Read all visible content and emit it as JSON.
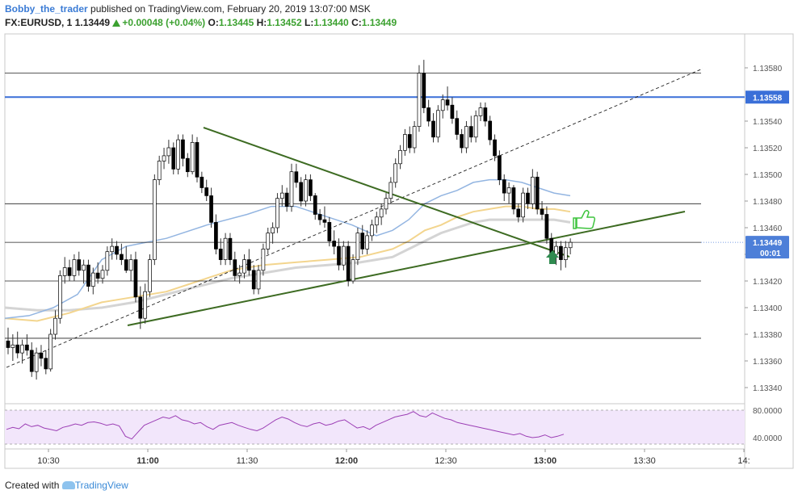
{
  "header": {
    "author": "Bobby_the_trader",
    "published_text": "published on TradingView.com, February 20, 2019 13:07:00 MSK",
    "symbol": "FX:EURUSD, 1",
    "last": "1.13449",
    "change": "+0.00048 (+0.04%)",
    "o_label": "O:",
    "o": "1.13445",
    "h_label": "H:",
    "h": "1.13452",
    "l_label": "L:",
    "l": "1.13440",
    "c_label": "C:",
    "c": "1.13449"
  },
  "footer": {
    "created_with": "Created with",
    "brand": "TradingView"
  },
  "colors": {
    "up": "#ffffff",
    "down": "#000000",
    "wick": "#333333",
    "sma_blue": "#93b5e1",
    "sma_yellow": "#f3d58e",
    "sma_grey": "#d4d4d4",
    "trend": "#3d6b22",
    "level": "#222222",
    "blue_level": "#3a6fd8",
    "rsi": "#9c3fb5",
    "rsi_band": "#f2e6fb",
    "price_label": "#4d7fd8",
    "arrow": "#2f8a4f",
    "thumb": "#3ec43e"
  },
  "chart_data": {
    "type": "candlestick",
    "price_axis": {
      "min": 1.1332,
      "max": 1.1359,
      "ticks": [
        "1.13340",
        "1.13360",
        "1.13380",
        "1.13400",
        "1.13420",
        "1.13440",
        "1.13460",
        "1.13480",
        "1.13500",
        "1.13520",
        "1.13540",
        "1.13580"
      ]
    },
    "time_axis": {
      "ticks": [
        "10:30",
        "11:00",
        "11:30",
        "12:00",
        "12:30",
        "13:00",
        "13:30",
        "14:"
      ]
    },
    "candles": [
      [
        1.13375,
        1.13385,
        1.13365,
        1.1337
      ],
      [
        1.1337,
        1.1338,
        1.1336,
        1.13372
      ],
      [
        1.13372,
        1.13382,
        1.13362,
        1.13366
      ],
      [
        1.13366,
        1.13376,
        1.13358,
        1.13372
      ],
      [
        1.13372,
        1.1338,
        1.13364,
        1.13368
      ],
      [
        1.13368,
        1.13374,
        1.13348,
        1.13352
      ],
      [
        1.13352,
        1.1337,
        1.13346,
        1.13366
      ],
      [
        1.13366,
        1.13372,
        1.13356,
        1.13362
      ],
      [
        1.13362,
        1.13368,
        1.1335,
        1.13354
      ],
      [
        1.13354,
        1.13384,
        1.13352,
        1.1338
      ],
      [
        1.1338,
        1.13398,
        1.13376,
        1.13392
      ],
      [
        1.13392,
        1.13428,
        1.13388,
        1.13424
      ],
      [
        1.13424,
        1.13438,
        1.13418,
        1.1343
      ],
      [
        1.1343,
        1.13436,
        1.1342,
        1.13424
      ],
      [
        1.13424,
        1.1344,
        1.1342,
        1.13436
      ],
      [
        1.13436,
        1.13442,
        1.13424,
        1.13428
      ],
      [
        1.13428,
        1.13436,
        1.13418,
        1.13432
      ],
      [
        1.13432,
        1.13436,
        1.13412,
        1.13416
      ],
      [
        1.13416,
        1.1343,
        1.1341,
        1.13426
      ],
      [
        1.13426,
        1.13434,
        1.13418,
        1.13422
      ],
      [
        1.13422,
        1.13432,
        1.13418,
        1.13428
      ],
      [
        1.13428,
        1.13446,
        1.13424,
        1.13442
      ],
      [
        1.13442,
        1.13452,
        1.13436,
        1.13446
      ],
      [
        1.13446,
        1.1345,
        1.13436,
        1.1344
      ],
      [
        1.1344,
        1.13448,
        1.13432,
        1.13436
      ],
      [
        1.13436,
        1.13446,
        1.13426,
        1.13428
      ],
      [
        1.13428,
        1.1344,
        1.1342,
        1.13436
      ],
      [
        1.13436,
        1.13442,
        1.13404,
        1.13408
      ],
      [
        1.13408,
        1.13416,
        1.13384,
        1.13392
      ],
      [
        1.13392,
        1.13418,
        1.13388,
        1.13412
      ],
      [
        1.13412,
        1.1344,
        1.13408,
        1.13436
      ],
      [
        1.13436,
        1.135,
        1.13432,
        1.13496
      ],
      [
        1.13496,
        1.13514,
        1.13492,
        1.1351
      ],
      [
        1.1351,
        1.1352,
        1.13504,
        1.13514
      ],
      [
        1.13514,
        1.13526,
        1.13508,
        1.1352
      ],
      [
        1.1352,
        1.13524,
        1.135,
        1.13504
      ],
      [
        1.13504,
        1.1353,
        1.135,
        1.13526
      ],
      [
        1.13526,
        1.1353,
        1.13506,
        1.13512
      ],
      [
        1.13512,
        1.13516,
        1.13498,
        1.13502
      ],
      [
        1.13502,
        1.1353,
        1.135,
        1.13524
      ],
      [
        1.13524,
        1.13528,
        1.13494,
        1.13498
      ],
      [
        1.13498,
        1.13502,
        1.13486,
        1.1349
      ],
      [
        1.1349,
        1.13496,
        1.1348,
        1.13484
      ],
      [
        1.13484,
        1.1349,
        1.1346,
        1.13464
      ],
      [
        1.13464,
        1.1347,
        1.1344,
        1.13444
      ],
      [
        1.13444,
        1.13452,
        1.13432,
        1.13436
      ],
      [
        1.13436,
        1.13456,
        1.13432,
        1.13452
      ],
      [
        1.13452,
        1.13456,
        1.13432,
        1.13436
      ],
      [
        1.13436,
        1.13442,
        1.1342,
        1.13424
      ],
      [
        1.13424,
        1.13432,
        1.13418,
        1.13426
      ],
      [
        1.13426,
        1.1344,
        1.13422,
        1.13436
      ],
      [
        1.13436,
        1.13444,
        1.13424,
        1.13428
      ],
      [
        1.13428,
        1.13432,
        1.1341,
        1.13414
      ],
      [
        1.13414,
        1.13432,
        1.1341,
        1.13428
      ],
      [
        1.13428,
        1.13448,
        1.13424,
        1.13444
      ],
      [
        1.13444,
        1.1346,
        1.1344,
        1.13456
      ],
      [
        1.13456,
        1.13464,
        1.13448,
        1.1346
      ],
      [
        1.1346,
        1.13486,
        1.13456,
        1.13482
      ],
      [
        1.13482,
        1.13492,
        1.13476,
        1.13486
      ],
      [
        1.13486,
        1.1349,
        1.13472,
        1.13476
      ],
      [
        1.13476,
        1.13508,
        1.13472,
        1.13502
      ],
      [
        1.13502,
        1.13508,
        1.1349,
        1.13494
      ],
      [
        1.13494,
        1.13498,
        1.13476,
        1.1348
      ],
      [
        1.1348,
        1.135,
        1.13476,
        1.13496
      ],
      [
        1.13496,
        1.135,
        1.1348,
        1.13484
      ],
      [
        1.13484,
        1.13486,
        1.13466,
        1.1347
      ],
      [
        1.1347,
        1.13474,
        1.13462,
        1.13466
      ],
      [
        1.13466,
        1.13476,
        1.1346,
        1.13464
      ],
      [
        1.13464,
        1.13468,
        1.13446,
        1.1345
      ],
      [
        1.1345,
        1.13458,
        1.1344,
        1.13446
      ],
      [
        1.13446,
        1.13452,
        1.13428,
        1.13432
      ],
      [
        1.13432,
        1.1345,
        1.13428,
        1.13446
      ],
      [
        1.13446,
        1.1345,
        1.13416,
        1.1342
      ],
      [
        1.1342,
        1.1344,
        1.13418,
        1.13436
      ],
      [
        1.13436,
        1.1346,
        1.13432,
        1.13456
      ],
      [
        1.13456,
        1.13462,
        1.1344,
        1.13444
      ],
      [
        1.13444,
        1.13458,
        1.1344,
        1.13454
      ],
      [
        1.13454,
        1.13466,
        1.1345,
        1.13462
      ],
      [
        1.13462,
        1.13472,
        1.13456,
        1.13468
      ],
      [
        1.13468,
        1.13478,
        1.13462,
        1.13474
      ],
      [
        1.13474,
        1.13486,
        1.1347,
        1.13482
      ],
      [
        1.13482,
        1.13498,
        1.13478,
        1.13494
      ],
      [
        1.13494,
        1.13512,
        1.1349,
        1.13508
      ],
      [
        1.13508,
        1.13522,
        1.13504,
        1.13518
      ],
      [
        1.13518,
        1.13534,
        1.13514,
        1.1353
      ],
      [
        1.1353,
        1.13536,
        1.13516,
        1.1352
      ],
      [
        1.1352,
        1.1354,
        1.13516,
        1.13536
      ],
      [
        1.13536,
        1.13582,
        1.13532,
        1.13576
      ],
      [
        1.13576,
        1.13586,
        1.13546,
        1.1355
      ],
      [
        1.1355,
        1.13556,
        1.13536,
        1.1354
      ],
      [
        1.1354,
        1.13546,
        1.13524,
        1.13528
      ],
      [
        1.13528,
        1.13552,
        1.13524,
        1.13548
      ],
      [
        1.13548,
        1.1356,
        1.13542,
        1.13556
      ],
      [
        1.13556,
        1.13566,
        1.13548,
        1.13552
      ],
      [
        1.13552,
        1.13558,
        1.13538,
        1.13542
      ],
      [
        1.13542,
        1.13548,
        1.13526,
        1.1353
      ],
      [
        1.1353,
        1.13534,
        1.13516,
        1.1352
      ],
      [
        1.1352,
        1.1354,
        1.13516,
        1.13536
      ],
      [
        1.13536,
        1.13544,
        1.13524,
        1.13528
      ],
      [
        1.13528,
        1.13548,
        1.13524,
        1.13544
      ],
      [
        1.13544,
        1.13554,
        1.1354,
        1.1355
      ],
      [
        1.1355,
        1.13554,
        1.13536,
        1.1354
      ],
      [
        1.1354,
        1.13544,
        1.13522,
        1.13526
      ],
      [
        1.13526,
        1.1353,
        1.1351,
        1.13514
      ],
      [
        1.13514,
        1.13518,
        1.13492,
        1.13496
      ],
      [
        1.13496,
        1.135,
        1.1348,
        1.13486
      ],
      [
        1.13486,
        1.13494,
        1.13478,
        1.1349
      ],
      [
        1.1349,
        1.13492,
        1.1347,
        1.13474
      ],
      [
        1.13474,
        1.13478,
        1.13464,
        1.13468
      ],
      [
        1.13468,
        1.1349,
        1.13464,
        1.13486
      ],
      [
        1.13486,
        1.1349,
        1.13474,
        1.13478
      ],
      [
        1.13478,
        1.13504,
        1.13474,
        1.13498
      ],
      [
        1.13498,
        1.13502,
        1.1347,
        1.13474
      ],
      [
        1.13474,
        1.1348,
        1.13466,
        1.1347
      ],
      [
        1.1347,
        1.13476,
        1.13448,
        1.13452
      ],
      [
        1.13452,
        1.13456,
        1.13436,
        1.1344
      ],
      [
        1.1344,
        1.1345,
        1.13432,
        1.13446
      ],
      [
        1.13446,
        1.1345,
        1.13428,
        1.13436
      ],
      [
        1.13436,
        1.1345,
        1.1343,
        1.13445
      ],
      [
        1.13445,
        1.13452,
        1.1344,
        1.13449
      ]
    ],
    "sma_blue": [
      [
        0,
        1.13392
      ],
      [
        30,
        1.13394
      ],
      [
        60,
        1.134
      ],
      [
        90,
        1.1341
      ],
      [
        120,
        1.13436
      ],
      [
        150,
        1.13446
      ],
      [
        200,
        1.13452
      ],
      [
        250,
        1.13462
      ],
      [
        300,
        1.1347
      ],
      [
        330,
        1.13476
      ],
      [
        360,
        1.13476
      ],
      [
        400,
        1.13468
      ],
      [
        430,
        1.13462
      ],
      [
        460,
        1.13454
      ],
      [
        480,
        1.13458
      ],
      [
        500,
        1.13466
      ],
      [
        520,
        1.13478
      ],
      [
        540,
        1.13484
      ],
      [
        560,
        1.13488
      ],
      [
        580,
        1.13494
      ],
      [
        600,
        1.13496
      ],
      [
        620,
        1.13496
      ],
      [
        640,
        1.13494
      ],
      [
        660,
        1.1349
      ],
      [
        680,
        1.13486
      ],
      [
        700,
        1.13484
      ]
    ],
    "sma_yellow": [
      [
        0,
        1.13392
      ],
      [
        40,
        1.1339
      ],
      [
        80,
        1.13396
      ],
      [
        120,
        1.13404
      ],
      [
        160,
        1.13408
      ],
      [
        200,
        1.13412
      ],
      [
        240,
        1.1342
      ],
      [
        280,
        1.13428
      ],
      [
        320,
        1.13432
      ],
      [
        360,
        1.13434
      ],
      [
        400,
        1.13436
      ],
      [
        440,
        1.13438
      ],
      [
        480,
        1.13444
      ],
      [
        500,
        1.1345
      ],
      [
        520,
        1.13458
      ],
      [
        540,
        1.13462
      ],
      [
        560,
        1.13468
      ],
      [
        580,
        1.13472
      ],
      [
        600,
        1.13474
      ],
      [
        620,
        1.13476
      ],
      [
        640,
        1.13476
      ],
      [
        660,
        1.13474
      ],
      [
        680,
        1.13474
      ],
      [
        700,
        1.13472
      ]
    ],
    "sma_grey": [
      [
        0,
        1.134
      ],
      [
        40,
        1.13398
      ],
      [
        80,
        1.13398
      ],
      [
        120,
        1.134
      ],
      [
        160,
        1.13404
      ],
      [
        200,
        1.1341
      ],
      [
        240,
        1.13416
      ],
      [
        280,
        1.13422
      ],
      [
        320,
        1.13426
      ],
      [
        360,
        1.1343
      ],
      [
        400,
        1.13432
      ],
      [
        440,
        1.13434
      ],
      [
        480,
        1.13438
      ],
      [
        500,
        1.13444
      ],
      [
        520,
        1.1345
      ],
      [
        540,
        1.13456
      ],
      [
        560,
        1.1346
      ],
      [
        580,
        1.13464
      ],
      [
        600,
        1.13466
      ],
      [
        620,
        1.13466
      ],
      [
        640,
        1.13466
      ],
      [
        660,
        1.13466
      ],
      [
        680,
        1.13466
      ],
      [
        700,
        1.13464
      ]
    ],
    "levels": [
      1.13576,
      1.13478,
      1.13449,
      1.1342,
      1.13377
    ],
    "blue_level": {
      "value": 1.13558,
      "label": "1.13558"
    },
    "current_price": {
      "value": 1.13449,
      "label": "1.13449",
      "countdown": "00:01"
    },
    "rsi": {
      "ticks": [
        "80.0000",
        "40.0000"
      ],
      "values": [
        52,
        55,
        53,
        60,
        56,
        58,
        54,
        52,
        50,
        55,
        57,
        60,
        58,
        62,
        63,
        61,
        58,
        60,
        57,
        42,
        38,
        48,
        58,
        62,
        66,
        70,
        68,
        72,
        66,
        64,
        60,
        62,
        56,
        52,
        58,
        60,
        62,
        58,
        55,
        52,
        50,
        54,
        60,
        66,
        70,
        67,
        62,
        58,
        56,
        60,
        62,
        58,
        60,
        64,
        66,
        60,
        54,
        56,
        52,
        58,
        62,
        66,
        70,
        72,
        74,
        78,
        72,
        70,
        76,
        72,
        68,
        66,
        62,
        60,
        58,
        56,
        54,
        52,
        50,
        48,
        46,
        44,
        46,
        42,
        40,
        41,
        44,
        40,
        42,
        45
      ]
    }
  }
}
